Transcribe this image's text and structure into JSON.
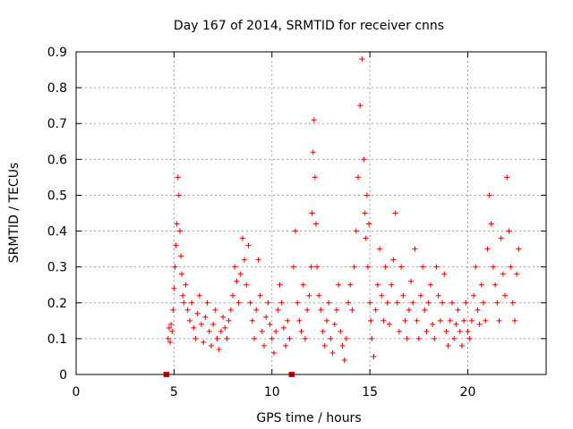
{
  "chart_data": {
    "type": "scatter",
    "title": "Day 167 of 2014, SRMTID for receiver cnns",
    "xlabel": "GPS time / hours",
    "ylabel": "SRMTID / TECUs",
    "xlim": [
      0,
      24
    ],
    "ylim": [
      0,
      0.9
    ],
    "xticks": [
      0,
      5,
      10,
      15,
      20
    ],
    "xtick_labels": [
      "0",
      "5",
      "10",
      "15",
      "20"
    ],
    "yticks": [
      0,
      0.1,
      0.2,
      0.3,
      0.4,
      0.5,
      0.6,
      0.7,
      0.8,
      0.9
    ],
    "ytick_labels": [
      "0",
      "0.1",
      "0.2",
      "0.3",
      "0.4",
      "0.5",
      "0.6",
      "0.7",
      "0.8",
      "0.9"
    ],
    "grid": true,
    "color": "#e00000",
    "marker": "+",
    "series": [
      {
        "name": "SRMTID",
        "x": [
          4.6,
          4.62,
          11.0,
          11.02,
          4.7,
          4.75,
          4.8,
          4.85,
          4.9,
          4.95,
          5.0,
          5.05,
          5.1,
          5.15,
          5.2,
          5.25,
          5.3,
          5.35,
          5.4,
          5.45,
          5.5,
          5.6,
          5.7,
          5.8,
          5.9,
          6.0,
          6.1,
          6.2,
          6.3,
          6.4,
          6.5,
          6.6,
          6.7,
          6.8,
          6.9,
          7.0,
          7.1,
          7.2,
          7.3,
          7.4,
          7.5,
          7.6,
          7.7,
          7.8,
          7.9,
          8.0,
          8.1,
          8.2,
          8.3,
          8.4,
          8.5,
          8.6,
          8.7,
          8.8,
          8.9,
          9.0,
          9.1,
          9.2,
          9.3,
          9.4,
          9.5,
          9.6,
          9.7,
          9.8,
          9.9,
          10.0,
          10.1,
          10.2,
          10.3,
          10.4,
          10.5,
          10.6,
          10.7,
          10.8,
          10.9,
          11.1,
          11.2,
          11.3,
          11.4,
          11.5,
          11.6,
          11.7,
          11.8,
          11.9,
          12.0,
          12.05,
          12.1,
          12.15,
          12.2,
          12.25,
          12.3,
          12.4,
          12.5,
          12.6,
          12.7,
          12.8,
          12.9,
          13.0,
          13.1,
          13.2,
          13.3,
          13.4,
          13.5,
          13.6,
          13.7,
          13.8,
          13.9,
          14.0,
          14.1,
          14.2,
          14.3,
          14.4,
          14.5,
          14.6,
          14.7,
          14.75,
          14.8,
          14.85,
          14.9,
          14.95,
          15.0,
          15.05,
          15.1,
          15.2,
          15.3,
          15.4,
          15.5,
          15.6,
          15.7,
          15.8,
          15.9,
          16.0,
          16.1,
          16.2,
          16.3,
          16.4,
          16.5,
          16.6,
          16.7,
          16.8,
          16.9,
          17.0,
          17.1,
          17.2,
          17.3,
          17.4,
          17.5,
          17.6,
          17.7,
          17.8,
          17.9,
          18.0,
          18.1,
          18.2,
          18.3,
          18.4,
          18.5,
          18.6,
          18.7,
          18.8,
          18.9,
          19.0,
          19.1,
          19.2,
          19.3,
          19.4,
          19.5,
          19.6,
          19.7,
          19.8,
          19.9,
          20.0,
          20.1,
          20.2,
          20.3,
          20.4,
          20.5,
          20.6,
          20.7,
          20.8,
          20.9,
          21.0,
          21.1,
          21.2,
          21.3,
          21.4,
          21.5,
          21.6,
          21.7,
          21.8,
          21.9,
          22.0,
          22.1,
          22.2,
          22.3,
          22.4,
          22.5,
          22.6
        ],
        "y": [
          0.0,
          0.0,
          0.0,
          0.0,
          0.1,
          0.13,
          0.09,
          0.14,
          0.12,
          0.18,
          0.24,
          0.3,
          0.36,
          0.42,
          0.55,
          0.5,
          0.4,
          0.33,
          0.28,
          0.22,
          0.2,
          0.25,
          0.18,
          0.15,
          0.2,
          0.13,
          0.1,
          0.17,
          0.22,
          0.14,
          0.09,
          0.16,
          0.2,
          0.12,
          0.08,
          0.14,
          0.18,
          0.1,
          0.07,
          0.12,
          0.16,
          0.13,
          0.1,
          0.15,
          0.18,
          0.22,
          0.3,
          0.26,
          0.2,
          0.28,
          0.38,
          0.32,
          0.25,
          0.36,
          0.2,
          0.15,
          0.1,
          0.18,
          0.32,
          0.22,
          0.12,
          0.08,
          0.16,
          0.2,
          0.14,
          0.1,
          0.06,
          0.12,
          0.18,
          0.25,
          0.2,
          0.13,
          0.08,
          0.15,
          0.1,
          0.3,
          0.4,
          0.2,
          0.15,
          0.12,
          0.25,
          0.1,
          0.18,
          0.22,
          0.3,
          0.45,
          0.62,
          0.71,
          0.55,
          0.42,
          0.3,
          0.22,
          0.18,
          0.12,
          0.08,
          0.15,
          0.2,
          0.1,
          0.06,
          0.14,
          0.18,
          0.25,
          0.12,
          0.08,
          0.04,
          0.1,
          0.2,
          0.25,
          0.18,
          0.3,
          0.4,
          0.55,
          0.75,
          0.88,
          0.6,
          0.45,
          0.38,
          0.5,
          0.3,
          0.42,
          0.2,
          0.15,
          0.1,
          0.05,
          0.18,
          0.25,
          0.35,
          0.22,
          0.15,
          0.3,
          0.2,
          0.14,
          0.25,
          0.32,
          0.45,
          0.2,
          0.12,
          0.3,
          0.22,
          0.15,
          0.1,
          0.18,
          0.26,
          0.2,
          0.35,
          0.15,
          0.1,
          0.22,
          0.3,
          0.18,
          0.12,
          0.2,
          0.25,
          0.14,
          0.1,
          0.3,
          0.22,
          0.15,
          0.2,
          0.28,
          0.12,
          0.08,
          0.15,
          0.2,
          0.1,
          0.14,
          0.18,
          0.12,
          0.08,
          0.15,
          0.2,
          0.12,
          0.1,
          0.15,
          0.22,
          0.3,
          0.18,
          0.14,
          0.25,
          0.2,
          0.15,
          0.35,
          0.5,
          0.42,
          0.3,
          0.25,
          0.2,
          0.15,
          0.38,
          0.28,
          0.22,
          0.55,
          0.4,
          0.3,
          0.2,
          0.15,
          0.28,
          0.35
        ]
      }
    ]
  }
}
